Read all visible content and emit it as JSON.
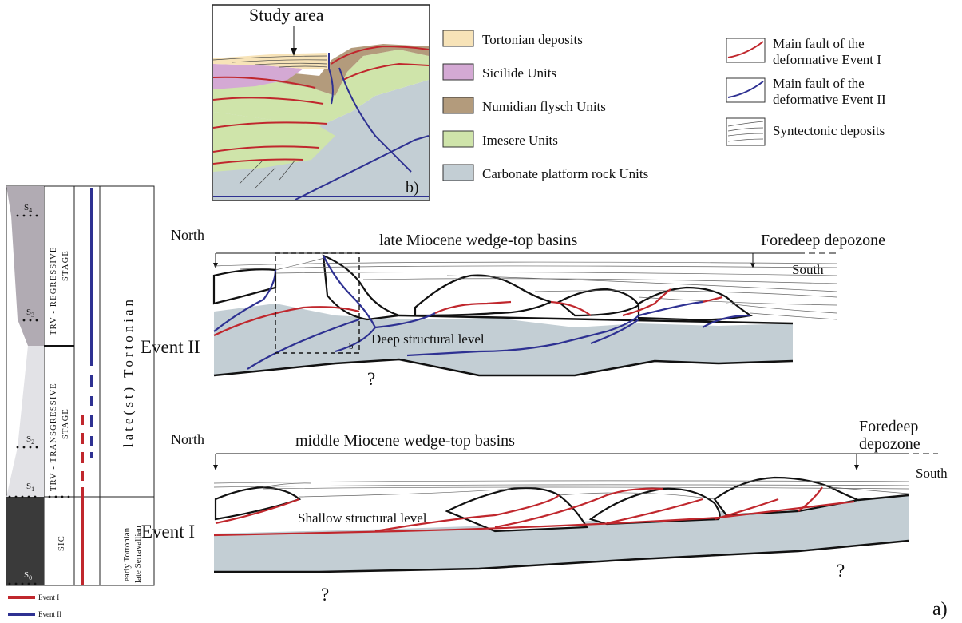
{
  "inset": {
    "study_area": "Study area",
    "label": "b)"
  },
  "legend": {
    "units": [
      {
        "label": "Tortonian deposits",
        "color": "#f7e3b8"
      },
      {
        "label": "Sicilide Units",
        "color": "#d4a9d4"
      },
      {
        "label": "Numidian flysch Units",
        "color": "#b39b7c"
      },
      {
        "label": "Imesere Units",
        "color": "#cfe4aa"
      },
      {
        "label": "Carbonate platform rock Units",
        "color": "#c3ced4"
      }
    ],
    "symbols": [
      {
        "line1": "Main fault of the",
        "line2": "deformative Event I",
        "color": "#c0272d"
      },
      {
        "line1": "Main fault of the",
        "line2": "deformative Event II",
        "color": "#2e3192"
      },
      {
        "line1": "Syntectonic deposits",
        "line2": "",
        "color": "#555555"
      }
    ]
  },
  "section_top": {
    "north": "North",
    "title": "late Miocene wedge-top basins",
    "foredeep": "Foredeep depozone",
    "south": "South",
    "event": "Event II",
    "level": "Deep structural level",
    "box_label": "b",
    "question": "?"
  },
  "section_bottom": {
    "north": "North",
    "title": "middle Miocene wedge-top basins",
    "foredeep_1": "Foredeep",
    "foredeep_2": "depozone",
    "south": "South",
    "event": "Event I",
    "level": "Shallow structural level",
    "question_1": "?",
    "question_2": "?"
  },
  "column": {
    "s4": "S",
    "s3": "S",
    "s2": "S",
    "s1": "S",
    "s0": "S",
    "sub4": "4",
    "sub3": "3",
    "sub2": "2",
    "sub1": "1",
    "sub0": "0",
    "stage_regressive_1": "TRV - REGRESSIVE",
    "stage_regressive_2": "STAGE",
    "stage_transgressive_1": "TRV - TRANSGRESSIVE",
    "stage_transgressive_2": "STAGE",
    "sic": "SIC",
    "age_late": "late(st)  Tortonian",
    "age_early_1": "early Tortonian",
    "age_early_2": "late Serravallian",
    "legend_event1": "Event I",
    "legend_event2": "Event II"
  },
  "figure_label": "a)"
}
